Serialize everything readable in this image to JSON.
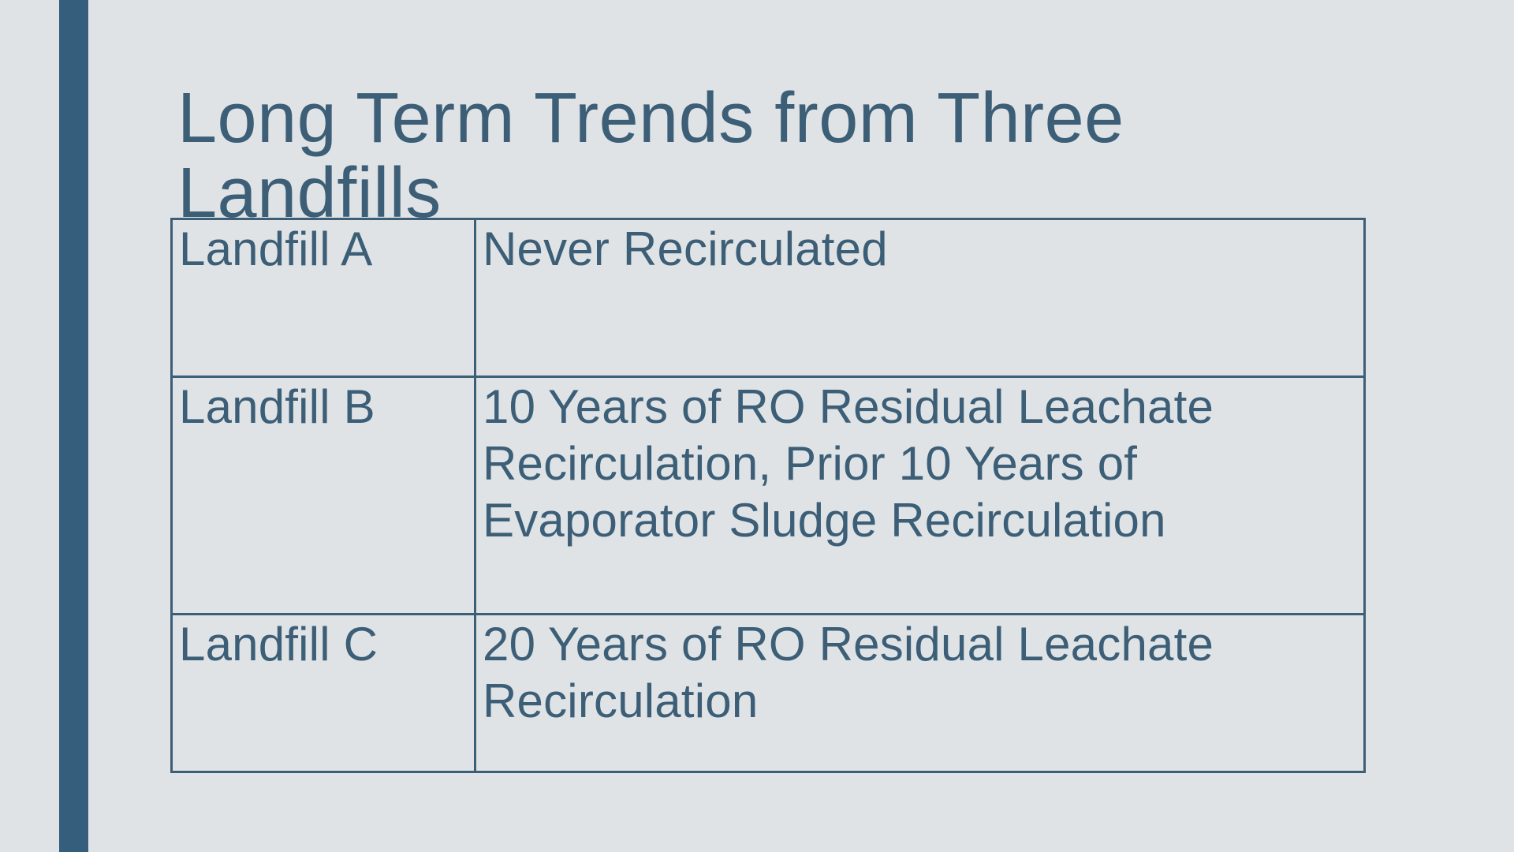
{
  "slide": {
    "title": "Long Term Trends from Three Landfills",
    "table": {
      "rows": [
        {
          "label": "Landfill A",
          "description": "Never Recirculated"
        },
        {
          "label": "Landfill B",
          "description": "10 Years of RO Residual Leachate Recirculation, Prior 10 Years of Evaporator Sludge Recirculation"
        },
        {
          "label": "Landfill C",
          "description": "20 Years of RO Residual Leachate Recirculation"
        }
      ]
    },
    "colors": {
      "background": "#dfe3e6",
      "ink": "#3c5e76",
      "accent_bar": "#345e7c"
    }
  }
}
